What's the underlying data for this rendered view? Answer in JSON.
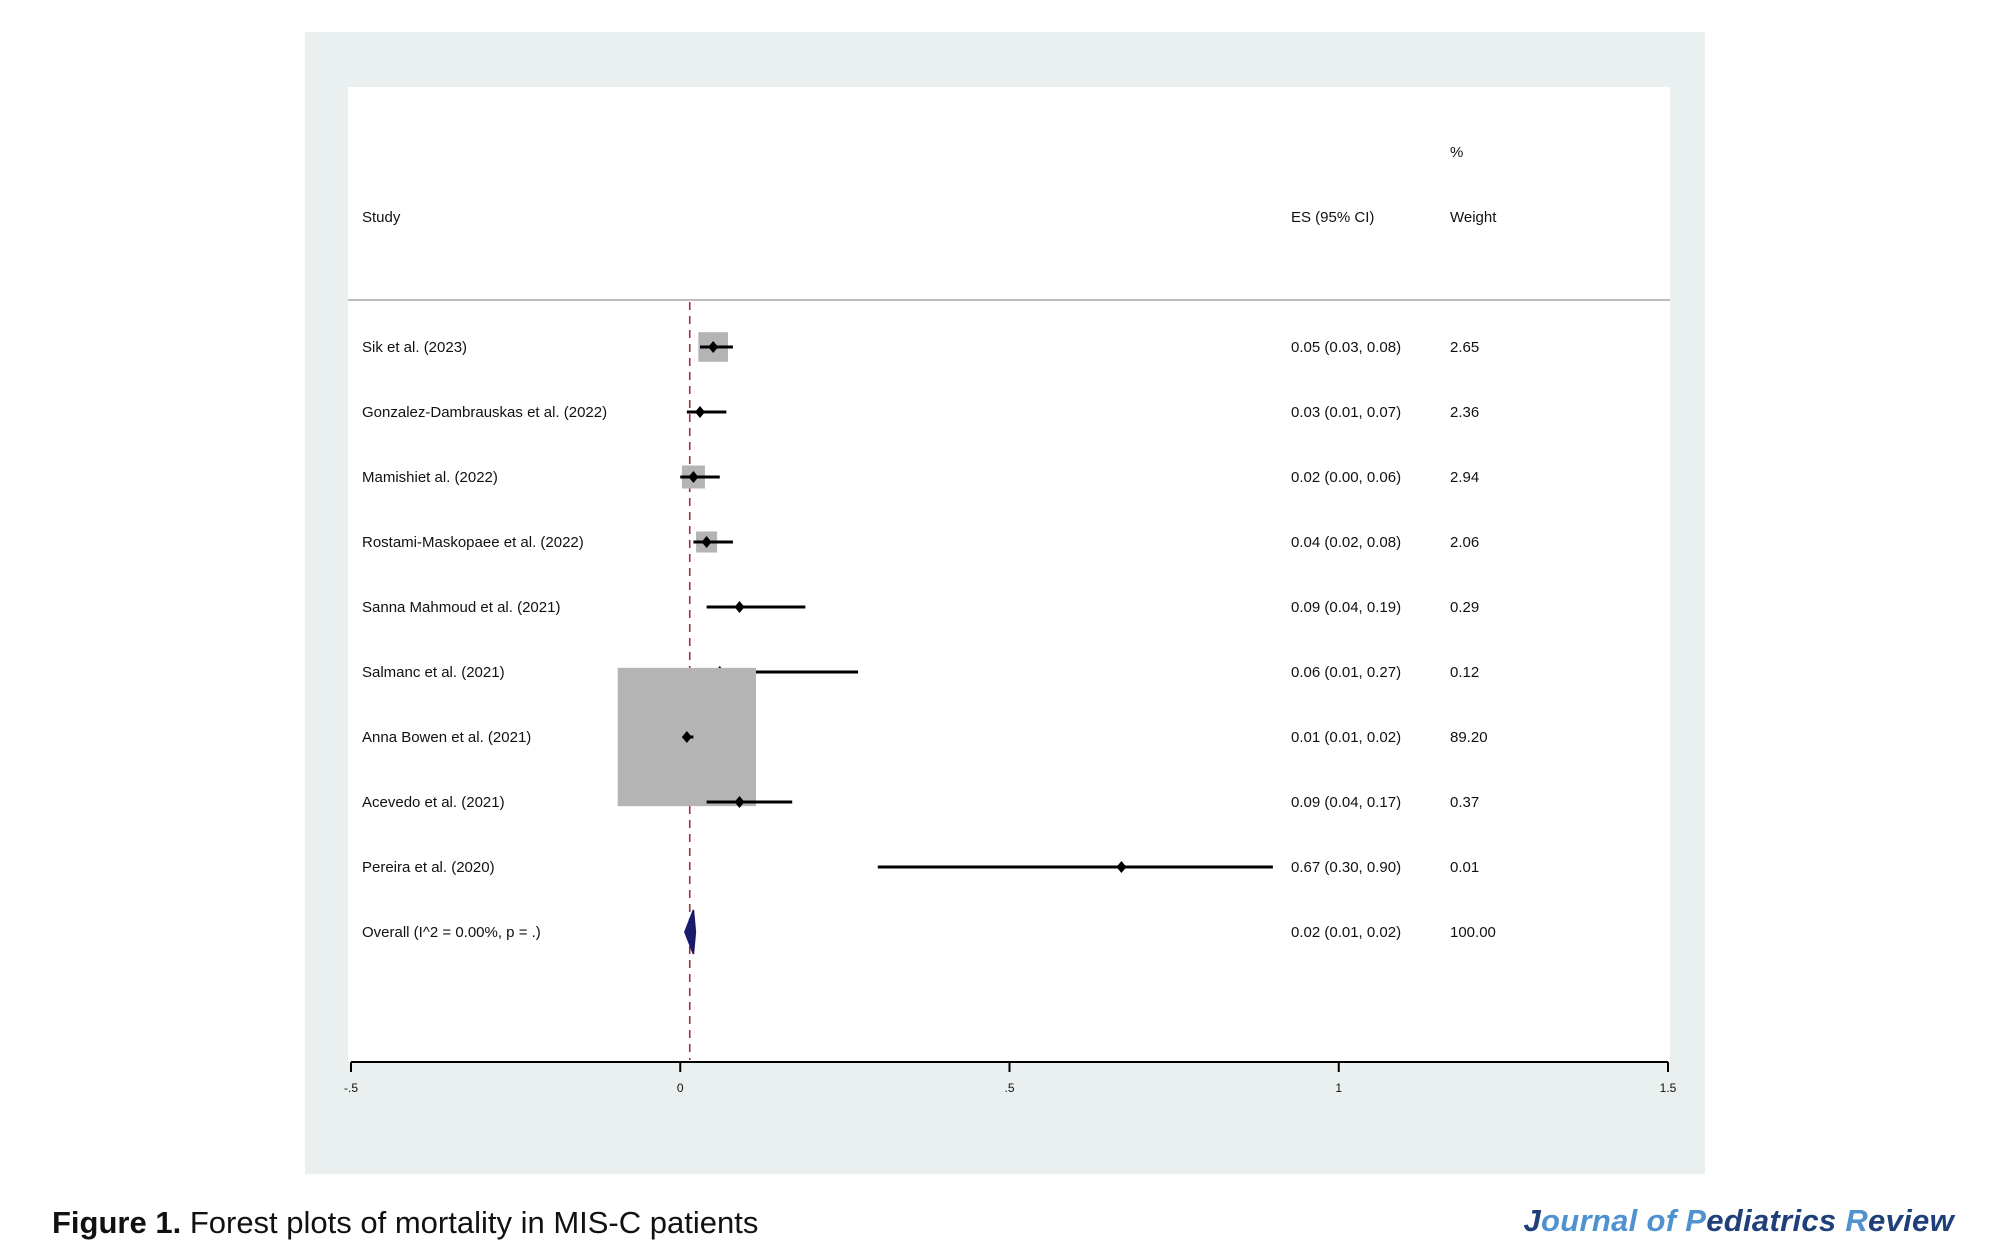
{
  "chart_data": {
    "type": "forest",
    "headers": {
      "study": "Study",
      "es": "ES (95% CI)",
      "weight_top": "%",
      "weight": "Weight"
    },
    "x_ticks": [
      {
        "value": -0.5,
        "label": "-.5"
      },
      {
        "value": 0,
        "label": "0"
      },
      {
        "value": 0.5,
        "label": ".5"
      },
      {
        "value": 1,
        "label": "1"
      },
      {
        "value": 1.5,
        "label": "1.5"
      }
    ],
    "xlim": [
      -0.5,
      1.5
    ],
    "reference_line": 0.0144,
    "studies": [
      {
        "label": "Sik et al. (2023)",
        "es": 0.05,
        "lo": 0.03,
        "hi": 0.08,
        "es_text": "0.05 (0.03, 0.08)",
        "weight_text": "2.65",
        "box": 0.045
      },
      {
        "label": "Gonzalez-Dambrauskas et al. (2022)",
        "es": 0.03,
        "lo": 0.01,
        "hi": 0.07,
        "es_text": "0.03 (0.01, 0.07)",
        "weight_text": "2.36",
        "box": 0.0
      },
      {
        "label": "Mamishiet al. (2022)",
        "es": 0.02,
        "lo": 0.0,
        "hi": 0.06,
        "es_text": "0.02 (0.00, 0.06)",
        "weight_text": "2.94",
        "box": 0.035
      },
      {
        "label": "Rostami-Maskopaee  et al. (2022)",
        "es": 0.04,
        "lo": 0.02,
        "hi": 0.08,
        "es_text": "0.04 (0.02, 0.08)",
        "weight_text": "2.06",
        "box": 0.032
      },
      {
        "label": "Sanna Mahmoud  et al. (2021)",
        "es": 0.09,
        "lo": 0.04,
        "hi": 0.19,
        "es_text": "0.09 (0.04, 0.19)",
        "weight_text": "0.29",
        "box": 0.0
      },
      {
        "label": "Salmanc et al. (2021)",
        "es": 0.06,
        "lo": 0.01,
        "hi": 0.27,
        "es_text": "0.06 (0.01, 0.27)",
        "weight_text": "0.12",
        "box": 0.0
      },
      {
        "label": "Anna Bowen  et al. (2021)",
        "es": 0.01,
        "lo": 0.01,
        "hi": 0.02,
        "es_text": "0.01 (0.01, 0.02)",
        "weight_text": "89.20",
        "box": 0.21
      },
      {
        "label": "Acevedo et al. (2021)",
        "es": 0.09,
        "lo": 0.04,
        "hi": 0.17,
        "es_text": "0.09 (0.04, 0.17)",
        "weight_text": "0.37",
        "box": 0.0
      },
      {
        "label": "Pereira et al. (2020)",
        "es": 0.67,
        "lo": 0.3,
        "hi": 0.9,
        "es_text": "0.67 (0.30, 0.90)",
        "weight_text": "0.01",
        "box": 0.0
      }
    ],
    "overall": {
      "label": "Overall  (I^2 = 0.00%, p = .)",
      "es": 0.02,
      "lo": 0.01,
      "hi": 0.02,
      "es_text": "0.02 (0.01, 0.02)",
      "weight_text": "100.00"
    }
  },
  "caption": {
    "prefix": "Figure 1.",
    "text": " Forest plots of mortality in MIS-C patients"
  },
  "journal": {
    "j": "J",
    "ournal": "ournal of ",
    "p": "P",
    "ediatrics": "ediatrics ",
    "r": "R",
    "eview": "eview"
  },
  "colors": {
    "panel_bg": "#eaf0ef",
    "box": "#b4b4b4",
    "ref_line": "#a0303a",
    "diamond": "#1a1a6e",
    "journal_dark": "#1f3f7a",
    "journal_accent": "#4f92cf"
  }
}
